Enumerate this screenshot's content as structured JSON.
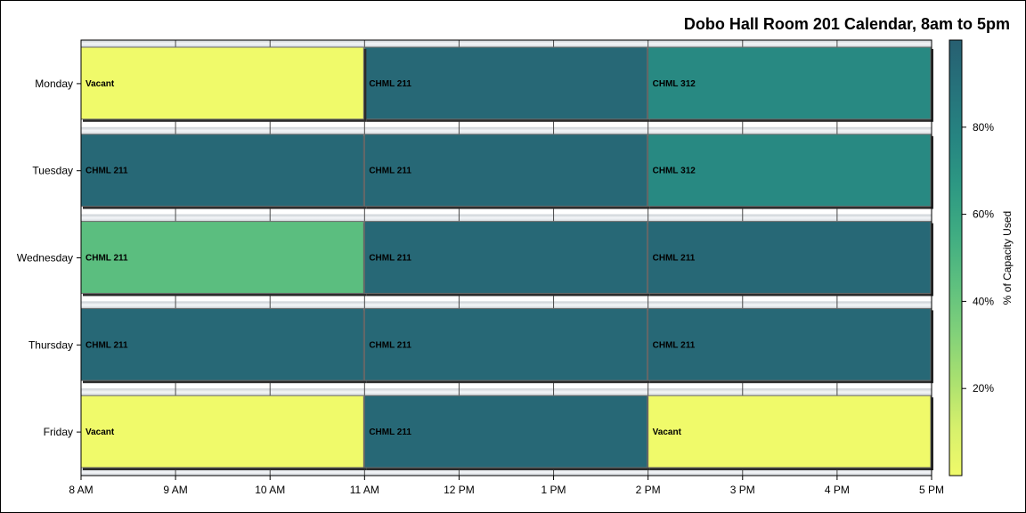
{
  "chart_data": {
    "type": "bar",
    "orientation": "horizontal-timeline",
    "title": "Dobo Hall Room 201 Calendar, 8am to 5pm",
    "categories": [
      "Monday",
      "Tuesday",
      "Wednesday",
      "Thursday",
      "Friday"
    ],
    "x_ticks": [
      {
        "value": 8,
        "label": "8 AM"
      },
      {
        "value": 9,
        "label": "9 AM"
      },
      {
        "value": 10,
        "label": "10 AM"
      },
      {
        "value": 11,
        "label": "11 AM"
      },
      {
        "value": 12,
        "label": "12 PM"
      },
      {
        "value": 13,
        "label": "1 PM"
      },
      {
        "value": 14,
        "label": "2 PM"
      },
      {
        "value": 15,
        "label": "3 PM"
      },
      {
        "value": 16,
        "label": "4 PM"
      },
      {
        "value": 17,
        "label": "5 PM"
      }
    ],
    "xlim": [
      8,
      17
    ],
    "colorbar": {
      "label": "% of Capacity Used",
      "range": [
        0,
        100
      ],
      "ticks": [
        {
          "value": 20,
          "label": "20%"
        },
        {
          "value": 40,
          "label": "40%"
        },
        {
          "value": 60,
          "label": "60%"
        },
        {
          "value": 80,
          "label": "80%"
        }
      ],
      "colors": [
        "#f0fa6a",
        "#d6f06c",
        "#a8e070",
        "#7fd07a",
        "#5cbf7f",
        "#3fac82",
        "#2d9883",
        "#268481",
        "#26727b",
        "#275f71"
      ]
    },
    "bookings": [
      {
        "day": "Monday",
        "start": 11,
        "end": 14,
        "label": "CHML 211",
        "capacity": 95
      },
      {
        "day": "Monday",
        "start": 8,
        "end": 11,
        "label": "Vacant",
        "capacity": 0
      },
      {
        "day": "Monday",
        "start": 14,
        "end": 17,
        "label": "CHML 312",
        "capacity": 75
      },
      {
        "day": "Tuesday",
        "start": 8,
        "end": 11,
        "label": "CHML 211",
        "capacity": 95
      },
      {
        "day": "Tuesday",
        "start": 11,
        "end": 14,
        "label": "CHML 211",
        "capacity": 95
      },
      {
        "day": "Tuesday",
        "start": 14,
        "end": 17,
        "label": "CHML 312",
        "capacity": 75
      },
      {
        "day": "Wednesday",
        "start": 8,
        "end": 11,
        "label": "CHML 211",
        "capacity": 45
      },
      {
        "day": "Wednesday",
        "start": 11,
        "end": 14,
        "label": "CHML 211",
        "capacity": 95
      },
      {
        "day": "Wednesday",
        "start": 14,
        "end": 17,
        "label": "CHML 211",
        "capacity": 95
      },
      {
        "day": "Thursday",
        "start": 8,
        "end": 11,
        "label": "CHML 211",
        "capacity": 95
      },
      {
        "day": "Thursday",
        "start": 11,
        "end": 14,
        "label": "CHML 211",
        "capacity": 95
      },
      {
        "day": "Thursday",
        "start": 14,
        "end": 17,
        "label": "CHML 211",
        "capacity": 95
      },
      {
        "day": "Friday",
        "start": 8,
        "end": 11,
        "label": "Vacant",
        "capacity": 0
      },
      {
        "day": "Friday",
        "start": 11,
        "end": 14,
        "label": "CHML 211",
        "capacity": 95
      },
      {
        "day": "Friday",
        "start": 14,
        "end": 17,
        "label": "Vacant",
        "capacity": 0
      }
    ],
    "grid": true,
    "legend": "right-colorbar"
  }
}
